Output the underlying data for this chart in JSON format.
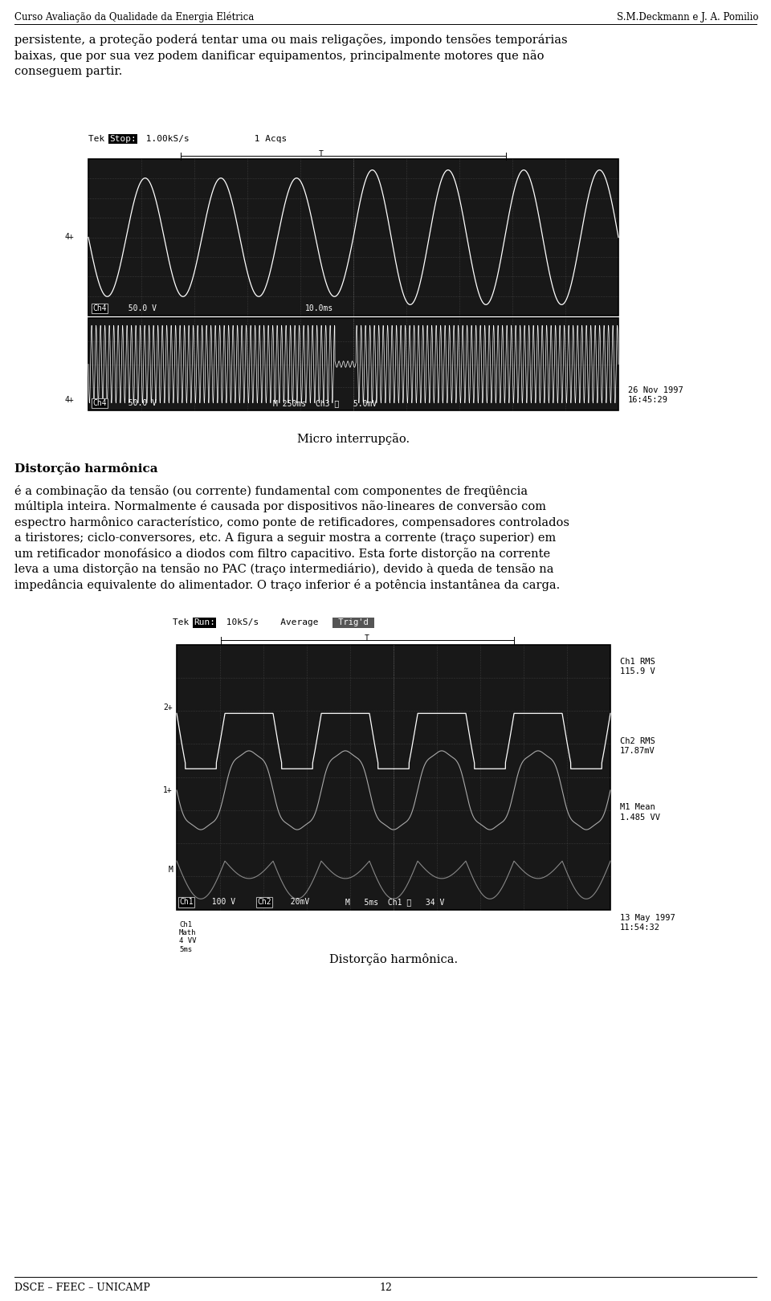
{
  "header_left": "Curso Avaliação da Qualidade da Energia Elétrica",
  "header_right": "S.M.Deckmann e J. A. Pomilio",
  "footer_left": "DSCE – FEEC – UNICAMP",
  "footer_center": "12",
  "bg_color": "#ffffff",
  "body_text_1": "persistente, a proteção poderá tentar uma ou mais religações, impondo tensões temporárias\nbaixas, que por sua vez podem danificar equipamentos, principalmente motores que não\nconseguem partir.",
  "osc1_caption": "Micro interrupção.",
  "section_title": "Distorção harmônica",
  "section_text_lines": [
    "é a combinação da tensão (ou corrente) fundamental com componentes de freqüência",
    "múltipla inteira. Normalmente é causada por dispositivos não-lineares de conversão com",
    "espectro harmônico característico, como ponte de retificadores, compensadores controlados",
    "a tiristores; ciclo-conversores, etc. A figura a seguir mostra a corrente (traço superior) em",
    "um retificador monofásico a diodos com filtro capacitivo. Esta forte distorção na corrente",
    "leva a uma distorção na tensão no PAC (traço intermediário), devido à queda de tensão na",
    "impedância equivalente do alimentador. O traço inferior é a potência instantânea da carga."
  ],
  "osc2_caption": "Distorção harmônica."
}
